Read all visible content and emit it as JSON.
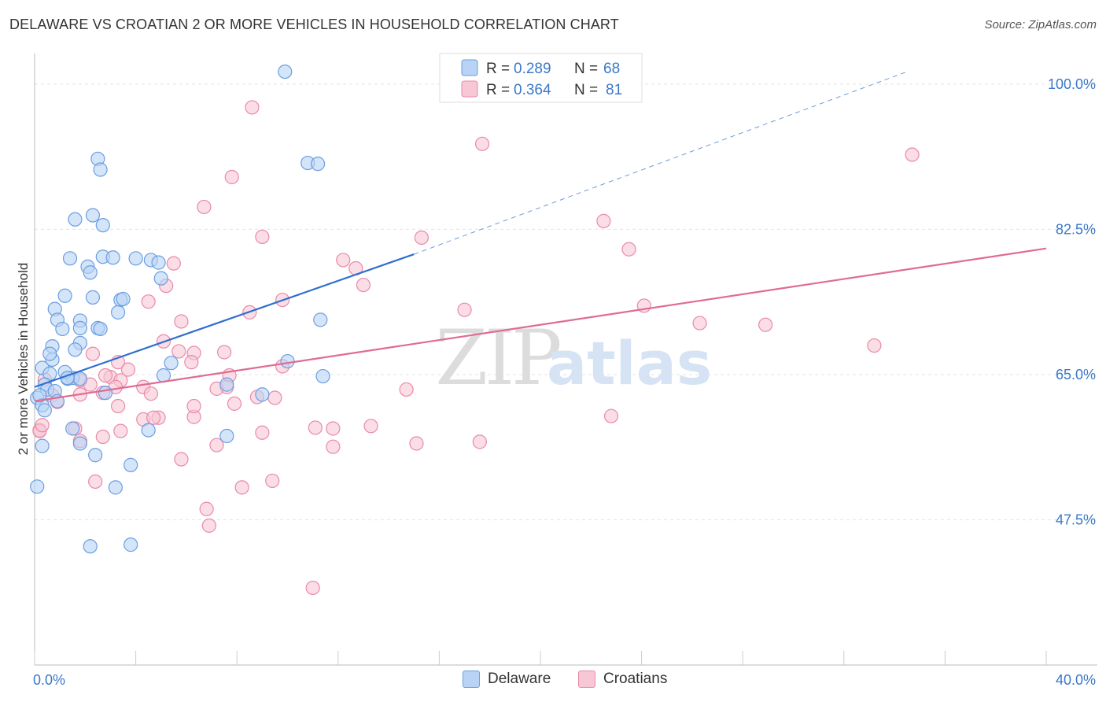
{
  "title": "DELAWARE VS CROATIAN 2 OR MORE VEHICLES IN HOUSEHOLD CORRELATION CHART",
  "source": "Source: ZipAtlas.com",
  "watermark": {
    "zip": "ZIP",
    "atlas": "atlas"
  },
  "colors": {
    "blue_fill": "#b8d3f5",
    "blue_stroke": "#6b9ee0",
    "blue_line": "#2f6fcd",
    "pink_fill": "#f8c7d6",
    "pink_stroke": "#e98aa9",
    "pink_line": "#e06b93",
    "axis_label": "#3a78c9",
    "grid": "#e3e3e3"
  },
  "legend_top": [
    {
      "series": "Delaware",
      "r_label": "R =",
      "r_value": "0.289",
      "n_label": "N =",
      "n_value": "68"
    },
    {
      "series": "Croatians",
      "r_label": "R =",
      "r_value": "0.364",
      "n_label": "N =",
      "n_value": "81"
    }
  ],
  "legend_bottom": [
    "Delaware",
    "Croatians"
  ],
  "chart_data": {
    "type": "scatter",
    "title": "DELAWARE VS CROATIAN 2 OR MORE VEHICLES IN HOUSEHOLD CORRELATION CHART",
    "xlabel": "",
    "ylabel": "2 or more Vehicles in Household",
    "xlim": [
      0,
      40
    ],
    "ylim": [
      30,
      103.5
    ],
    "x_tick_labels": [
      {
        "value": 0,
        "label": "0.0%"
      },
      {
        "value": 40,
        "label": "40.0%"
      }
    ],
    "y_tick_labels": [
      {
        "value": 100,
        "label": "100.0%"
      },
      {
        "value": 82.5,
        "label": "82.5%"
      },
      {
        "value": 65,
        "label": "65.0%"
      },
      {
        "value": 47.5,
        "label": "47.5%"
      }
    ],
    "grid": true,
    "series": [
      {
        "name": "Delaware",
        "R": 0.289,
        "N": 68,
        "trend": {
          "x": [
            0,
            15
          ],
          "y": [
            63.5,
            79.5
          ],
          "dashed_to": [
            34.5,
            101.5
          ]
        },
        "points": [
          [
            9.9,
            101.5
          ],
          [
            2.5,
            91
          ],
          [
            2.6,
            89.7
          ],
          [
            10.8,
            90.5
          ],
          [
            11.2,
            90.4
          ],
          [
            2.3,
            84.2
          ],
          [
            1.6,
            83.7
          ],
          [
            2.7,
            83
          ],
          [
            1.4,
            79
          ],
          [
            2.7,
            79.2
          ],
          [
            3.1,
            79.1
          ],
          [
            4,
            79
          ],
          [
            4.6,
            78.8
          ],
          [
            2.1,
            78
          ],
          [
            2.2,
            77.3
          ],
          [
            5,
            76.6
          ],
          [
            1.2,
            74.5
          ],
          [
            2.3,
            74.3
          ],
          [
            3.4,
            74
          ],
          [
            3.5,
            74.1
          ],
          [
            3.3,
            72.5
          ],
          [
            0.8,
            72.9
          ],
          [
            0.9,
            71.6
          ],
          [
            1.8,
            71.5
          ],
          [
            11.3,
            71.6
          ],
          [
            1.1,
            70.5
          ],
          [
            1.8,
            70.6
          ],
          [
            2.5,
            70.6
          ],
          [
            2.6,
            70.5
          ],
          [
            1.8,
            68.8
          ],
          [
            0.7,
            68.4
          ],
          [
            1.6,
            68
          ],
          [
            0.7,
            66.8
          ],
          [
            5.4,
            66.4
          ],
          [
            10,
            66.6
          ],
          [
            0.3,
            65.8
          ],
          [
            0.6,
            65.1
          ],
          [
            1.5,
            64.6
          ],
          [
            1.8,
            64.5
          ],
          [
            1.3,
            64.5
          ],
          [
            5.1,
            64.9
          ],
          [
            11.4,
            64.8
          ],
          [
            0.4,
            63.8
          ],
          [
            7.6,
            63.8
          ],
          [
            0.5,
            63.2
          ],
          [
            0.8,
            63
          ],
          [
            2.8,
            62.8
          ],
          [
            9,
            62.6
          ],
          [
            0.1,
            62.2
          ],
          [
            0.3,
            61.3
          ],
          [
            0.9,
            61.8
          ],
          [
            0.4,
            60.7
          ],
          [
            1.5,
            58.5
          ],
          [
            4.5,
            58.3
          ],
          [
            7.6,
            57.6
          ],
          [
            1.8,
            56.7
          ],
          [
            0.3,
            56.4
          ],
          [
            2.4,
            55.3
          ],
          [
            3.8,
            54.1
          ],
          [
            3.2,
            51.4
          ],
          [
            0.1,
            51.5
          ],
          [
            2.2,
            44.3
          ],
          [
            3.8,
            44.5
          ],
          [
            0.2,
            62.5
          ],
          [
            1.2,
            65.3
          ],
          [
            4.9,
            78.5
          ],
          [
            0.6,
            67.5
          ],
          [
            1.3,
            64.6
          ]
        ]
      },
      {
        "name": "Croatians",
        "R": 0.364,
        "N": 81,
        "trend": {
          "x": [
            0,
            40
          ],
          "y": [
            61.8,
            80.2
          ]
        },
        "points": [
          [
            8.6,
            97.2
          ],
          [
            17.7,
            92.8
          ],
          [
            34.7,
            91.5
          ],
          [
            7.8,
            88.8
          ],
          [
            6.7,
            85.2
          ],
          [
            22.5,
            83.5
          ],
          [
            9,
            81.6
          ],
          [
            15.3,
            81.5
          ],
          [
            23.5,
            80.1
          ],
          [
            12.2,
            78.8
          ],
          [
            5.5,
            78.4
          ],
          [
            12.7,
            77.8
          ],
          [
            5.2,
            75.7
          ],
          [
            13,
            75.8
          ],
          [
            9.8,
            74
          ],
          [
            4.5,
            73.8
          ],
          [
            24.1,
            73.3
          ],
          [
            17,
            72.8
          ],
          [
            8.5,
            72.5
          ],
          [
            5.8,
            71.4
          ],
          [
            26.3,
            71.2
          ],
          [
            28.9,
            71
          ],
          [
            33.2,
            68.5
          ],
          [
            5.1,
            69
          ],
          [
            5.7,
            67.8
          ],
          [
            7.5,
            67.7
          ],
          [
            6.3,
            67.6
          ],
          [
            2.3,
            67.5
          ],
          [
            3.3,
            66.5
          ],
          [
            6.2,
            66.5
          ],
          [
            9.8,
            66
          ],
          [
            3.7,
            65.6
          ],
          [
            7.7,
            64.9
          ],
          [
            3,
            64.7
          ],
          [
            3.4,
            64.3
          ],
          [
            1.8,
            64.3
          ],
          [
            2.2,
            63.8
          ],
          [
            3.2,
            63.5
          ],
          [
            4.3,
            63.5
          ],
          [
            7.6,
            63.5
          ],
          [
            7.2,
            63.3
          ],
          [
            14.7,
            63.2
          ],
          [
            1.8,
            62.6
          ],
          [
            2.7,
            62.8
          ],
          [
            4.6,
            62.7
          ],
          [
            0.7,
            62.5
          ],
          [
            8.8,
            62.3
          ],
          [
            9.5,
            62.2
          ],
          [
            0.9,
            61.7
          ],
          [
            7.9,
            61.5
          ],
          [
            4.9,
            59.8
          ],
          [
            6.3,
            59.9
          ],
          [
            4.3,
            59.6
          ],
          [
            22.8,
            60
          ],
          [
            13.3,
            58.8
          ],
          [
            11.1,
            58.6
          ],
          [
            11.8,
            58.5
          ],
          [
            9,
            58
          ],
          [
            3.4,
            58.2
          ],
          [
            2.7,
            57.5
          ],
          [
            17.6,
            56.9
          ],
          [
            15.1,
            56.7
          ],
          [
            7.2,
            56.5
          ],
          [
            11.8,
            56.3
          ],
          [
            1.8,
            57
          ],
          [
            0.2,
            58.3
          ],
          [
            0.2,
            58.2
          ],
          [
            5.8,
            54.8
          ],
          [
            2.4,
            52.1
          ],
          [
            9.4,
            52.2
          ],
          [
            8.2,
            51.4
          ],
          [
            6.8,
            48.8
          ],
          [
            6.9,
            46.8
          ],
          [
            11,
            39.3
          ],
          [
            4.7,
            59.8
          ],
          [
            3.3,
            61.2
          ],
          [
            6.3,
            61.2
          ],
          [
            1.6,
            58.5
          ],
          [
            0.4,
            64.4
          ],
          [
            2.8,
            64.9
          ],
          [
            0.3,
            58.9
          ]
        ]
      }
    ]
  }
}
